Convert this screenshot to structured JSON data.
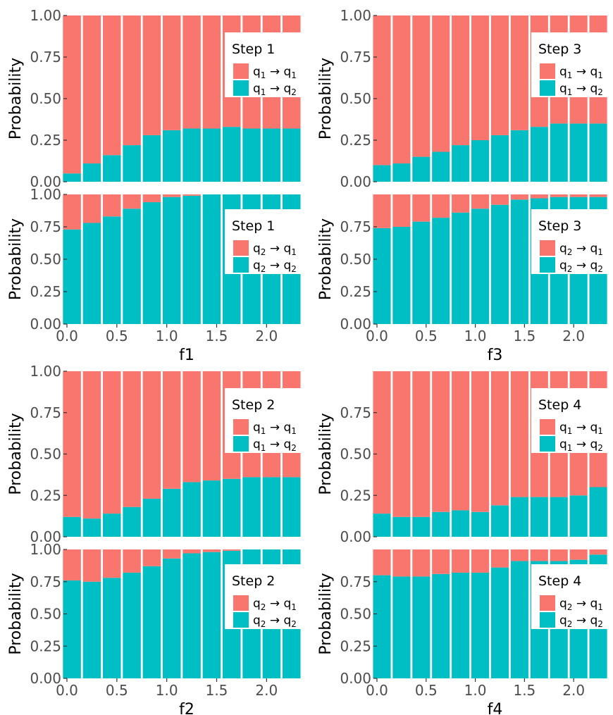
{
  "colors": {
    "to_q1": "#F8766D",
    "to_q2": "#00BFC4"
  },
  "axis_tick_labels_y": [
    "0.00",
    "0.25",
    "0.50",
    "0.75",
    "1.00"
  ],
  "axis_tick_labels_x": [
    "0.0",
    "0.5",
    "1.0",
    "1.5",
    "2.0"
  ],
  "chart_data": [
    {
      "type": "bar",
      "stacked": true,
      "step": "Step 1",
      "from_state": "q1",
      "ylabel": "Probability",
      "xlim": [
        0,
        2.4
      ],
      "ylim": [
        0,
        1
      ],
      "legend": {
        "title": "Step 1",
        "items": [
          "q1 → q1",
          "q1 → q2"
        ]
      },
      "x": [
        0.05,
        0.25,
        0.45,
        0.65,
        0.85,
        1.05,
        1.25,
        1.45,
        1.65,
        1.85,
        2.05,
        2.25
      ],
      "series": [
        {
          "name": "q1 → q2",
          "values": [
            0.05,
            0.11,
            0.16,
            0.22,
            0.28,
            0.31,
            0.32,
            0.32,
            0.33,
            0.32,
            0.32,
            0.32
          ]
        },
        {
          "name": "q1 → q1",
          "values": [
            0.95,
            0.89,
            0.84,
            0.78,
            0.72,
            0.69,
            0.68,
            0.68,
            0.67,
            0.68,
            0.68,
            0.68
          ]
        }
      ]
    },
    {
      "type": "bar",
      "stacked": true,
      "step": "Step 1",
      "from_state": "q2",
      "ylabel": "Probability",
      "xlabel": "f1",
      "xlim": [
        0,
        2.4
      ],
      "ylim": [
        0,
        1
      ],
      "legend": {
        "title": "Step 1",
        "items": [
          "q2 → q1",
          "q2 → q2"
        ]
      },
      "x": [
        0.05,
        0.25,
        0.45,
        0.65,
        0.85,
        1.05,
        1.25,
        1.45,
        1.65,
        1.85,
        2.05,
        2.25
      ],
      "series": [
        {
          "name": "q2 → q2",
          "values": [
            0.73,
            0.78,
            0.83,
            0.89,
            0.94,
            0.98,
            0.99,
            1.0,
            1.0,
            1.0,
            1.0,
            1.0
          ]
        },
        {
          "name": "q2 → q1",
          "values": [
            0.27,
            0.22,
            0.17,
            0.11,
            0.06,
            0.02,
            0.01,
            0.0,
            0.0,
            0.0,
            0.0,
            0.0
          ]
        }
      ]
    },
    {
      "type": "bar",
      "stacked": true,
      "step": "Step 3",
      "from_state": "q1",
      "ylabel": "Probability",
      "xlim": [
        0,
        2.4
      ],
      "ylim": [
        0,
        1
      ],
      "legend": {
        "title": "Step 3",
        "items": [
          "q1 → q1",
          "q1 → q2"
        ]
      },
      "x": [
        0.05,
        0.25,
        0.45,
        0.65,
        0.85,
        1.05,
        1.25,
        1.45,
        1.65,
        1.85,
        2.05,
        2.25
      ],
      "series": [
        {
          "name": "q1 → q2",
          "values": [
            0.1,
            0.11,
            0.15,
            0.18,
            0.22,
            0.25,
            0.28,
            0.31,
            0.33,
            0.35,
            0.35,
            0.35
          ]
        },
        {
          "name": "q1 → q1",
          "values": [
            0.9,
            0.89,
            0.85,
            0.82,
            0.78,
            0.75,
            0.72,
            0.69,
            0.67,
            0.65,
            0.65,
            0.65
          ]
        }
      ]
    },
    {
      "type": "bar",
      "stacked": true,
      "step": "Step 3",
      "from_state": "q2",
      "ylabel": "Probability",
      "xlabel": "f3",
      "xlim": [
        0,
        2.4
      ],
      "ylim": [
        0,
        1
      ],
      "legend": {
        "title": "Step 3",
        "items": [
          "q2 → q1",
          "q2 → q2"
        ]
      },
      "x": [
        0.05,
        0.25,
        0.45,
        0.65,
        0.85,
        1.05,
        1.25,
        1.45,
        1.65,
        1.85,
        2.05,
        2.25
      ],
      "series": [
        {
          "name": "q2 → q2",
          "values": [
            0.74,
            0.75,
            0.79,
            0.82,
            0.86,
            0.89,
            0.92,
            0.96,
            0.97,
            0.98,
            0.98,
            0.98
          ]
        },
        {
          "name": "q2 → q1",
          "values": [
            0.26,
            0.25,
            0.21,
            0.18,
            0.14,
            0.11,
            0.08,
            0.04,
            0.03,
            0.02,
            0.02,
            0.02
          ]
        }
      ]
    },
    {
      "type": "bar",
      "stacked": true,
      "step": "Step 2",
      "from_state": "q1",
      "ylabel": "Probability",
      "xlim": [
        0,
        2.4
      ],
      "ylim": [
        0,
        1
      ],
      "legend": {
        "title": "Step 2",
        "items": [
          "q1 → q1",
          "q1 → q2"
        ]
      },
      "x": [
        0.05,
        0.25,
        0.45,
        0.65,
        0.85,
        1.05,
        1.25,
        1.45,
        1.65,
        1.85,
        2.05,
        2.25
      ],
      "series": [
        {
          "name": "q1 → q2",
          "values": [
            0.12,
            0.11,
            0.14,
            0.18,
            0.23,
            0.29,
            0.33,
            0.34,
            0.35,
            0.36,
            0.36,
            0.36
          ]
        },
        {
          "name": "q1 → q1",
          "values": [
            0.88,
            0.89,
            0.86,
            0.82,
            0.77,
            0.71,
            0.67,
            0.66,
            0.65,
            0.64,
            0.64,
            0.64
          ]
        }
      ]
    },
    {
      "type": "bar",
      "stacked": true,
      "step": "Step 2",
      "from_state": "q2",
      "ylabel": "Probability",
      "xlabel": "f2",
      "xlim": [
        0,
        2.4
      ],
      "ylim": [
        0,
        1
      ],
      "legend": {
        "title": "Step 2",
        "items": [
          "q2 → q1",
          "q2 → q2"
        ]
      },
      "x": [
        0.05,
        0.25,
        0.45,
        0.65,
        0.85,
        1.05,
        1.25,
        1.45,
        1.65,
        1.85,
        2.05,
        2.25
      ],
      "series": [
        {
          "name": "q2 → q2",
          "values": [
            0.76,
            0.75,
            0.78,
            0.82,
            0.87,
            0.93,
            0.97,
            0.98,
            0.99,
            1.0,
            1.0,
            1.0
          ]
        },
        {
          "name": "q2 → q1",
          "values": [
            0.24,
            0.25,
            0.22,
            0.18,
            0.13,
            0.07,
            0.03,
            0.02,
            0.01,
            0.0,
            0.0,
            0.0
          ]
        }
      ]
    },
    {
      "type": "bar",
      "stacked": true,
      "step": "Step 4",
      "from_state": "q1",
      "ylabel": "Probability",
      "xlim": [
        0,
        2.4
      ],
      "ylim": [
        0,
        1
      ],
      "legend": {
        "title": "Step 4",
        "items": [
          "q1 → q1",
          "q1 → q2"
        ]
      },
      "x": [
        0.05,
        0.25,
        0.45,
        0.65,
        0.85,
        1.05,
        1.25,
        1.45,
        1.65,
        1.85,
        2.05,
        2.25
      ],
      "series": [
        {
          "name": "q1 → q2",
          "values": [
            0.14,
            0.12,
            0.12,
            0.15,
            0.16,
            0.15,
            0.19,
            0.24,
            0.24,
            0.24,
            0.25,
            0.3
          ]
        },
        {
          "name": "q1 → q1",
          "values": [
            0.86,
            0.88,
            0.88,
            0.85,
            0.84,
            0.85,
            0.81,
            0.76,
            0.76,
            0.76,
            0.75,
            0.7
          ]
        }
      ]
    },
    {
      "type": "bar",
      "stacked": true,
      "step": "Step 4",
      "from_state": "q2",
      "ylabel": "Probability",
      "xlabel": "f4",
      "xlim": [
        0,
        2.4
      ],
      "ylim": [
        0,
        1
      ],
      "legend": {
        "title": "Step 4",
        "items": [
          "q2 → q1",
          "q2 → q2"
        ]
      },
      "x": [
        0.05,
        0.25,
        0.45,
        0.65,
        0.85,
        1.05,
        1.25,
        1.45,
        1.65,
        1.85,
        2.05,
        2.25
      ],
      "series": [
        {
          "name": "q2 → q2",
          "values": [
            0.8,
            0.79,
            0.79,
            0.81,
            0.82,
            0.82,
            0.86,
            0.91,
            0.91,
            0.91,
            0.92,
            0.96
          ]
        },
        {
          "name": "q2 → q1",
          "values": [
            0.2,
            0.21,
            0.21,
            0.19,
            0.18,
            0.18,
            0.14,
            0.09,
            0.09,
            0.09,
            0.08,
            0.04
          ]
        }
      ]
    }
  ]
}
